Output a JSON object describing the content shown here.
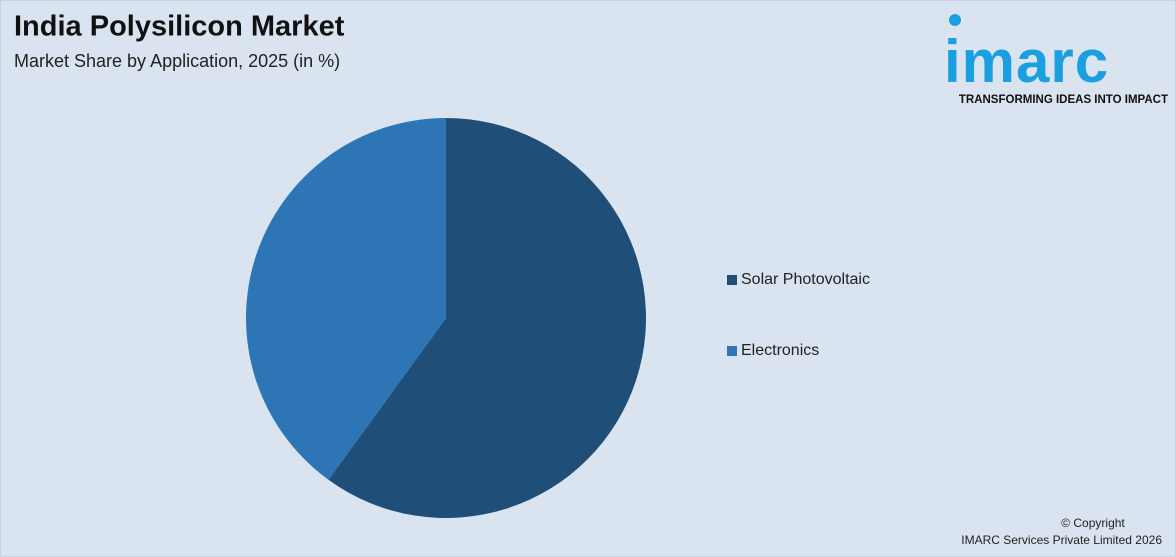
{
  "chart_data": {
    "type": "pie",
    "title": "India Polysilicon Market",
    "subtitle": "Market Share by Application, 2025 (in %)",
    "categories": [
      "Solar Photovoltaic",
      "Electronics"
    ],
    "values": [
      60,
      40
    ],
    "colors": [
      "#1f4e79",
      "#2e75b6"
    ],
    "legend_position": "right"
  },
  "logo": {
    "name": "imarc",
    "tagline": "TRANSFORMING IDEAS INTO IMPACT"
  },
  "footer": {
    "line1": "© Copyright",
    "line2": "IMARC Services Private Limited 2026"
  }
}
